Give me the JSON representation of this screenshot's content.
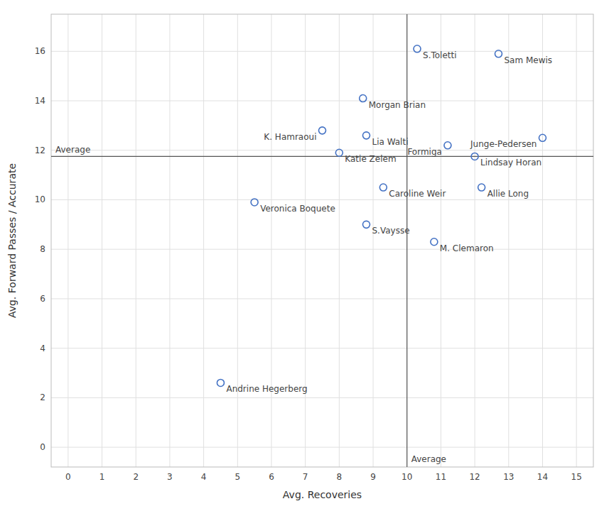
{
  "chart_data": {
    "type": "scatter",
    "xlabel": "Avg. Recoveries",
    "ylabel": "Avg. Forward Passes / Accurate",
    "labels": [
      "S.Toletti",
      "Sam Mewis",
      "Morgan Brian",
      "K. Hamraoui",
      "Lia Walti",
      "Katie Zelem",
      "Junge-Pedersen",
      "Formiga",
      "Lindsay Horan",
      "Caroline Weir",
      "Allie Long",
      "Veronica Boquete",
      "S.Vaysse",
      "M. Clemaron",
      "Andrine Hegerberg"
    ],
    "x": [
      10.3,
      12.7,
      8.7,
      7.5,
      8.8,
      8.0,
      14.0,
      11.2,
      12.0,
      9.3,
      12.2,
      5.5,
      8.8,
      10.8,
      4.5
    ],
    "values": [
      16.1,
      15.9,
      14.1,
      12.8,
      12.6,
      11.9,
      12.5,
      12.2,
      11.75,
      10.5,
      10.5,
      9.9,
      9.0,
      8.3,
      2.6
    ],
    "color": "#4472C4",
    "marker": "circle",
    "reference_lines": [
      {
        "axis": "y",
        "value": 11.75,
        "label": "Average"
      },
      {
        "axis": "x",
        "value": 10.0,
        "label": "Average"
      }
    ],
    "xlim": [
      -0.5,
      15.5
    ],
    "ylim": [
      -0.8,
      17.5
    ],
    "xticks": [
      0,
      1,
      2,
      3,
      4,
      5,
      6,
      7,
      8,
      9,
      10,
      11,
      12,
      13,
      14,
      15
    ],
    "yticks": [
      0,
      2,
      4,
      6,
      8,
      10,
      12,
      14,
      16
    ],
    "grid": true
  }
}
